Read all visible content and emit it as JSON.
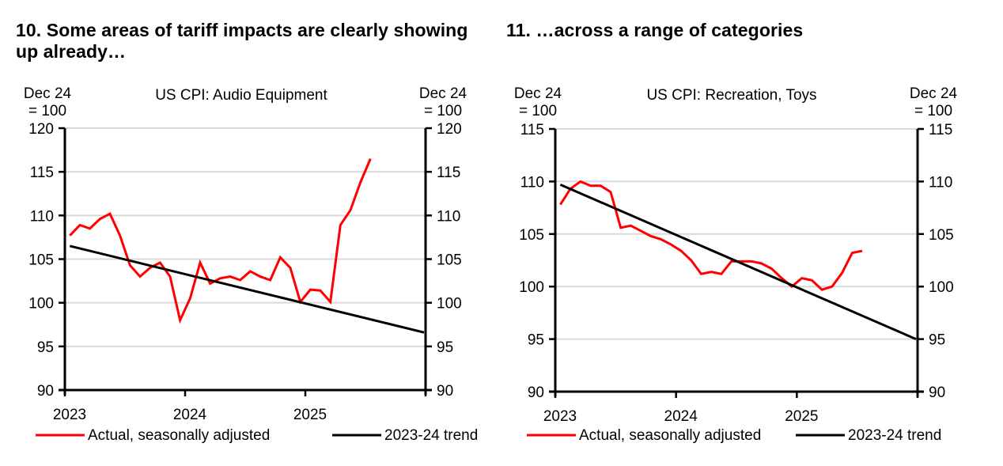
{
  "panels": [
    {
      "heading": "10. Some areas of tariff impacts are clearly showing up already…"
    },
    {
      "heading": "11. …across a range of categories"
    }
  ],
  "chart_data": [
    {
      "type": "line",
      "title": "US CPI: Audio Equipment",
      "ylabel_left": [
        "Dec 24",
        "= 100"
      ],
      "ylabel_right": [
        "Dec 24",
        "= 100"
      ],
      "xlabel": "",
      "ylim": [
        90,
        120
      ],
      "yticks": [
        90,
        95,
        100,
        105,
        110,
        115,
        120
      ],
      "xlim": [
        "2023-01",
        "2025-12"
      ],
      "xticks": [
        "2023",
        "2024",
        "2025"
      ],
      "grid": "horizontal",
      "legend_position": "bottom",
      "series": [
        {
          "name": "Actual, seasonally adjusted",
          "color": "#ff0000",
          "x_start": "2023-01",
          "frequency": "monthly",
          "values": [
            107.7,
            108.9,
            108.5,
            109.6,
            110.2,
            107.7,
            104.3,
            103.0,
            104.0,
            104.6,
            103.0,
            98.0,
            100.5,
            104.6,
            102.2,
            102.8,
            103.0,
            102.6,
            103.6,
            103.0,
            102.6,
            105.2,
            104.0,
            100.1,
            101.5,
            101.4,
            100.1,
            108.9,
            110.6,
            113.8,
            116.5
          ]
        },
        {
          "name": "2023-24 trend",
          "color": "#000000",
          "x": [
            "2023-01",
            "2025-12"
          ],
          "values": [
            106.5,
            96.6
          ]
        }
      ]
    },
    {
      "type": "line",
      "title": "US CPI: Recreation, Toys",
      "ylabel_left": [
        "Dec 24",
        "= 100"
      ],
      "ylabel_right": [
        "Dec 24",
        "= 100"
      ],
      "xlabel": "",
      "ylim": [
        90,
        115
      ],
      "yticks": [
        90,
        95,
        100,
        105,
        110,
        115
      ],
      "xlim": [
        "2023-01",
        "2025-12"
      ],
      "xticks": [
        "2023",
        "2024",
        "2025"
      ],
      "grid": "horizontal",
      "legend_position": "bottom",
      "series": [
        {
          "name": "Actual, seasonally adjusted",
          "color": "#ff0000",
          "x_start": "2023-01",
          "frequency": "monthly",
          "values": [
            107.8,
            109.3,
            110.0,
            109.6,
            109.6,
            109.0,
            105.6,
            105.8,
            105.3,
            104.8,
            104.5,
            104.0,
            103.4,
            102.5,
            101.2,
            101.4,
            101.2,
            102.4,
            102.4,
            102.4,
            102.2,
            101.7,
            100.8,
            100.0,
            100.8,
            100.6,
            99.7,
            100.0,
            101.3,
            103.2,
            103.4
          ]
        },
        {
          "name": "2023-24 trend",
          "color": "#000000",
          "x": [
            "2023-01",
            "2025-12"
          ],
          "values": [
            109.7,
            95.0
          ]
        }
      ]
    }
  ]
}
